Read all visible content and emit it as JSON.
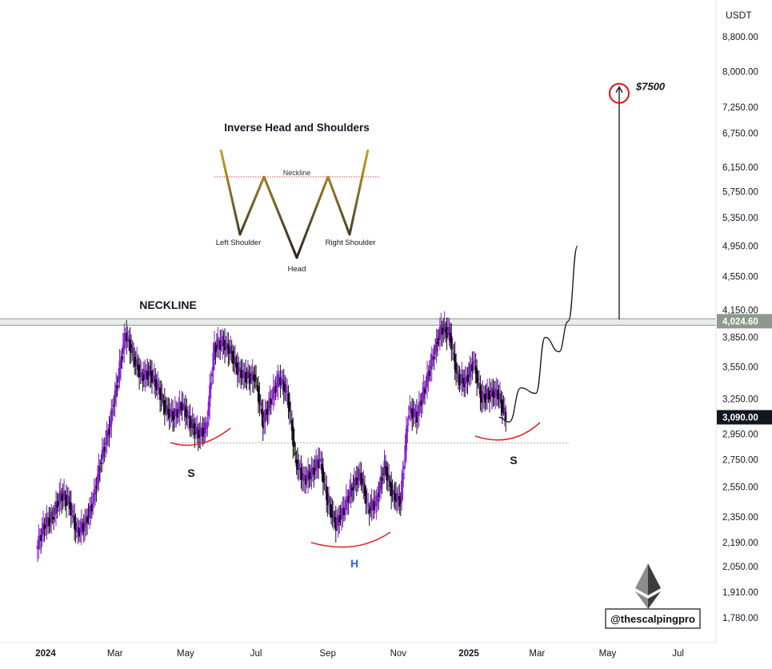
{
  "chart_data": {
    "type": "candlestick",
    "currency_label": "USDT",
    "y_axis_ticks": [
      8800,
      8000,
      7250,
      6750,
      6150,
      5750,
      5350,
      4950,
      4550,
      4150,
      3850,
      3550,
      3250,
      2950,
      2750,
      2550,
      2350,
      2190,
      2050,
      1910,
      1780
    ],
    "y_axis_tick_labels": [
      "8,800.00",
      "8,000.00",
      "7,250.00",
      "6,750.00",
      "6,150.00",
      "5,750.00",
      "5,350.00",
      "4,950.00",
      "4,550.00",
      "4,150.00",
      "3,850.00",
      "3,550.00",
      "3,250.00",
      "2,950.00",
      "2,750.00",
      "2,550.00",
      "2,350.00",
      "2,190.00",
      "2,050.00",
      "1,910.00",
      "1,780.00"
    ],
    "x_axis_ticks": [
      {
        "date": "2024-01-01",
        "label": "2024",
        "bold": true
      },
      {
        "date": "2024-03-01",
        "label": "Mar",
        "bold": false
      },
      {
        "date": "2024-05-01",
        "label": "May",
        "bold": false
      },
      {
        "date": "2024-07-01",
        "label": "Jul",
        "bold": false
      },
      {
        "date": "2024-09-01",
        "label": "Sep",
        "bold": false
      },
      {
        "date": "2024-11-01",
        "label": "Nov",
        "bold": false
      },
      {
        "date": "2025-01-01",
        "label": "2025",
        "bold": true
      },
      {
        "date": "2025-03-01",
        "label": "Mar",
        "bold": false
      },
      {
        "date": "2025-05-01",
        "label": "May",
        "bold": false
      },
      {
        "date": "2025-07-01",
        "label": "Jul",
        "bold": false
      }
    ],
    "neckline_price": 4024.6,
    "neckline_label": "4,024.60",
    "current_price": 3090.0,
    "current_price_label": "3,090.00",
    "shoulder_support_price": 2880,
    "target_price": 7500,
    "target_label": "$7500",
    "colors": {
      "up": "#8a1fd6",
      "down": "#111111",
      "neckline": "#8c9a8c",
      "annotation": "#e02a2a",
      "pattern_label": "#2962ff",
      "target": "#e01414"
    },
    "candles_weekly_close": [
      {
        "date": "2023-12-25",
        "close": 2300
      },
      {
        "date": "2024-01-01",
        "close": 2350
      },
      {
        "date": "2024-01-08",
        "close": 2500
      },
      {
        "date": "2024-01-15",
        "close": 2450
      },
      {
        "date": "2024-01-22",
        "close": 2250
      },
      {
        "date": "2024-01-29",
        "close": 2300
      },
      {
        "date": "2024-02-05",
        "close": 2450
      },
      {
        "date": "2024-02-12",
        "close": 2750
      },
      {
        "date": "2024-02-19",
        "close": 3000
      },
      {
        "date": "2024-02-26",
        "close": 3400
      },
      {
        "date": "2024-03-04",
        "close": 3900
      },
      {
        "date": "2024-03-11",
        "close": 3650
      },
      {
        "date": "2024-03-18",
        "close": 3450
      },
      {
        "date": "2024-03-25",
        "close": 3500
      },
      {
        "date": "2024-04-01",
        "close": 3350
      },
      {
        "date": "2024-04-08",
        "close": 3150
      },
      {
        "date": "2024-04-15",
        "close": 3100
      },
      {
        "date": "2024-04-22",
        "close": 3200
      },
      {
        "date": "2024-04-29",
        "close": 3050
      },
      {
        "date": "2024-05-06",
        "close": 2950
      },
      {
        "date": "2024-05-13",
        "close": 3000
      },
      {
        "date": "2024-05-20",
        "close": 3750
      },
      {
        "date": "2024-05-27",
        "close": 3800
      },
      {
        "date": "2024-06-03",
        "close": 3700
      },
      {
        "date": "2024-06-10",
        "close": 3500
      },
      {
        "date": "2024-06-17",
        "close": 3450
      },
      {
        "date": "2024-06-24",
        "close": 3450
      },
      {
        "date": "2024-07-01",
        "close": 3050
      },
      {
        "date": "2024-07-08",
        "close": 3250
      },
      {
        "date": "2024-07-15",
        "close": 3450
      },
      {
        "date": "2024-07-22",
        "close": 3300
      },
      {
        "date": "2024-07-29",
        "close": 2750
      },
      {
        "date": "2024-08-05",
        "close": 2600
      },
      {
        "date": "2024-08-12",
        "close": 2650
      },
      {
        "date": "2024-08-19",
        "close": 2750
      },
      {
        "date": "2024-08-26",
        "close": 2450
      },
      {
        "date": "2024-09-02",
        "close": 2300
      },
      {
        "date": "2024-09-09",
        "close": 2400
      },
      {
        "date": "2024-09-16",
        "close": 2550
      },
      {
        "date": "2024-09-23",
        "close": 2650
      },
      {
        "date": "2024-09-30",
        "close": 2400
      },
      {
        "date": "2024-10-07",
        "close": 2450
      },
      {
        "date": "2024-10-14",
        "close": 2700
      },
      {
        "date": "2024-10-21",
        "close": 2500
      },
      {
        "date": "2024-10-28",
        "close": 2450
      },
      {
        "date": "2024-11-04",
        "close": 3150
      },
      {
        "date": "2024-11-11",
        "close": 3100
      },
      {
        "date": "2024-11-18",
        "close": 3350
      },
      {
        "date": "2024-11-25",
        "close": 3650
      },
      {
        "date": "2024-12-02",
        "close": 3950
      },
      {
        "date": "2024-12-09",
        "close": 3900
      },
      {
        "date": "2024-12-16",
        "close": 3450
      },
      {
        "date": "2024-12-23",
        "close": 3400
      },
      {
        "date": "2024-12-30",
        "close": 3600
      },
      {
        "date": "2025-01-06",
        "close": 3250
      },
      {
        "date": "2025-01-13",
        "close": 3300
      },
      {
        "date": "2025-01-20",
        "close": 3300
      },
      {
        "date": "2025-01-27",
        "close": 3090
      }
    ],
    "projection_path": [
      {
        "date": "2025-01-27",
        "price": 3090
      },
      {
        "date": "2025-02-05",
        "price": 3050
      },
      {
        "date": "2025-02-15",
        "price": 3350
      },
      {
        "date": "2025-02-28",
        "price": 3300
      },
      {
        "date": "2025-03-08",
        "price": 3850
      },
      {
        "date": "2025-03-20",
        "price": 3700
      },
      {
        "date": "2025-03-28",
        "price": 4024.6
      },
      {
        "date": "2025-04-05",
        "price": 4950
      }
    ]
  },
  "annotations": {
    "neckline_text": "NECKLINE",
    "left_shoulder_marker": "S",
    "head_marker": "H",
    "right_shoulder_marker": "S"
  },
  "inset_diagram": {
    "title": "Inverse Head and Shoulders",
    "neckline_label": "Neckline",
    "left_shoulder_label": "Left Shoulder",
    "head_label": "Head",
    "right_shoulder_label": "Right Shoulder"
  },
  "watermark": {
    "handle": "@thescalpingpro",
    "logo_icon": "ethereum-icon"
  }
}
